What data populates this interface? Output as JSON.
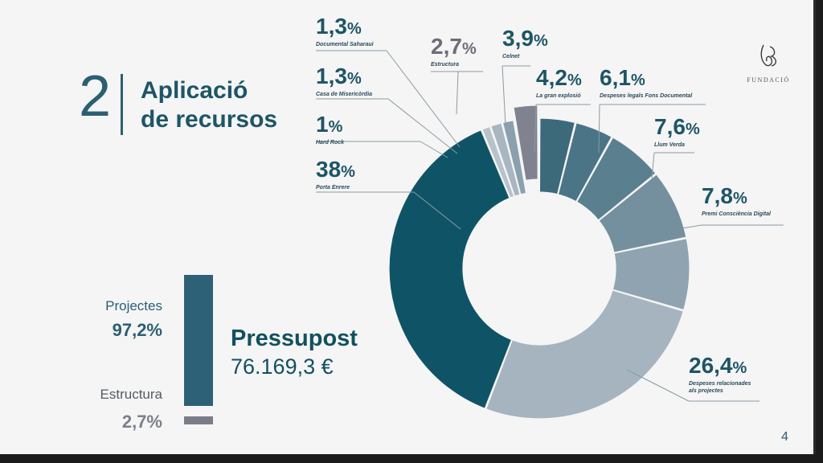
{
  "section": {
    "number": "2",
    "title_line1": "Aplicació",
    "title_line2": "de recursos"
  },
  "logo": {
    "mark": "JB",
    "text": "FUNDACIÓ"
  },
  "summary": {
    "projects_label": "Projectes",
    "projects_pct": "97,2%",
    "structure_label": "Estructura",
    "structure_pct": "2,7%",
    "budget_label": "Pressupost",
    "budget_value": "76.169,3 €"
  },
  "page_number": "4",
  "colors": {
    "title": "#1e5566",
    "background": "#f5f5f5"
  },
  "chart_data": {
    "type": "pie",
    "donut": true,
    "title": "",
    "slices": [
      {
        "label": "Celnet",
        "pct_text": "3,9",
        "value": 3.9,
        "color": "#3c6a7b"
      },
      {
        "label": "La gran explosió",
        "pct_text": "4,2",
        "value": 4.2,
        "color": "#4b7586"
      },
      {
        "label": "Despeses legals Fons Documental",
        "pct_text": "6,1",
        "value": 6.1,
        "color": "#5a8090"
      },
      {
        "label": "Llum Verda",
        "pct_text": "7,6",
        "value": 7.6,
        "color": "#748f9d"
      },
      {
        "label": "Premi Consciència Digital",
        "pct_text": "7,8",
        "value": 7.8,
        "color": "#8fa4b0"
      },
      {
        "label": "Despeses relacionades als projectes",
        "pct_text": "26,4",
        "value": 26.4,
        "color": "#a5b4bf"
      },
      {
        "label": "Porta Enrere",
        "pct_text": "38",
        "value": 38,
        "color": "#0f5466"
      },
      {
        "label": "Hard Rock",
        "pct_text": "1",
        "value": 1,
        "color": "#b7c3cc"
      },
      {
        "label": "Casa de Misericòrdia",
        "pct_text": "1,3",
        "value": 1.3,
        "color": "#a7b6c0"
      },
      {
        "label": "Documental Saharaui",
        "pct_text": "1,3",
        "value": 1.3,
        "color": "#8aa0ae"
      },
      {
        "label": "Estructura",
        "pct_text": "2,7",
        "value": 2.7,
        "color": "#80838f",
        "exploded": true
      }
    ]
  }
}
